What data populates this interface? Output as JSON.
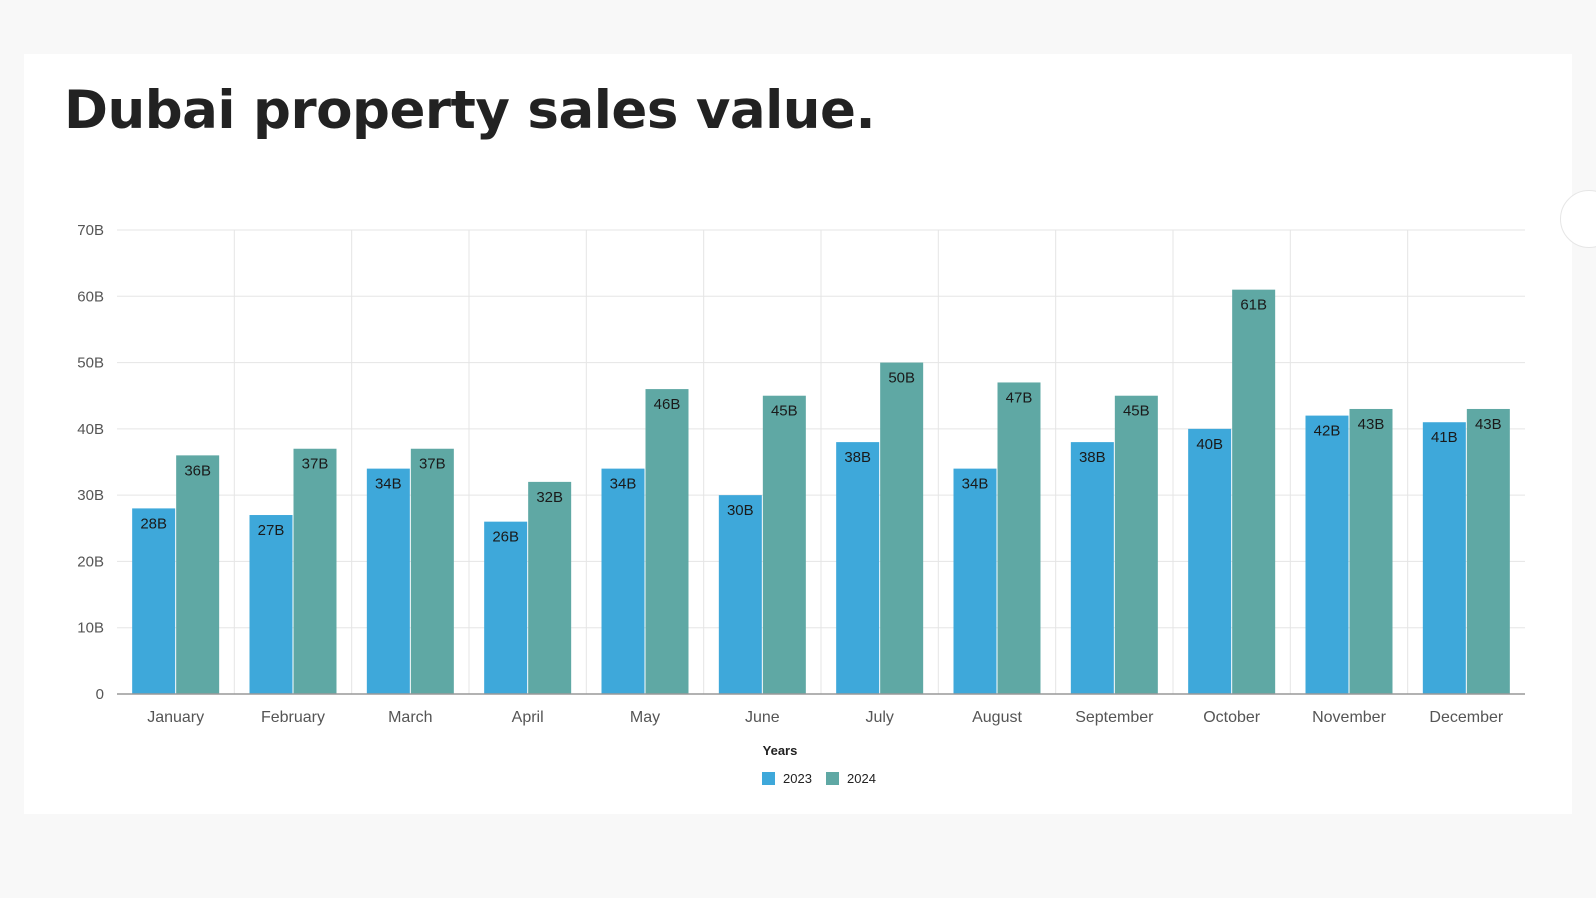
{
  "page": {
    "title": "Dubai property sales value."
  },
  "colors": {
    "series_2023": "#3ea8da",
    "series_2024": "#5fa8a4",
    "grid": "#e5e5e5",
    "axis": "#999999",
    "text": "#555555",
    "label": "#1a1a1a"
  },
  "chart_data": {
    "type": "bar",
    "title": "Dubai property sales value.",
    "categories": [
      "January",
      "February",
      "March",
      "April",
      "May",
      "June",
      "July",
      "August",
      "September",
      "October",
      "November",
      "December"
    ],
    "series": [
      {
        "name": "2023",
        "values": [
          28,
          27,
          34,
          26,
          34,
          30,
          38,
          34,
          38,
          40,
          42,
          41
        ],
        "labels": [
          "28B",
          "27B",
          "34B",
          "26B",
          "34B",
          "30B",
          "38B",
          "34B",
          "38B",
          "40B",
          "42B",
          "41B"
        ]
      },
      {
        "name": "2024",
        "values": [
          36,
          37,
          37,
          32,
          46,
          45,
          50,
          47,
          45,
          61,
          43,
          43
        ],
        "labels": [
          "36B",
          "37B",
          "37B",
          "32B",
          "46B",
          "45B",
          "50B",
          "47B",
          "45B",
          "61B",
          "43B",
          "43B"
        ]
      }
    ],
    "ylim": [
      0,
      70
    ],
    "yticks": [
      0,
      10,
      20,
      30,
      40,
      50,
      60,
      70
    ],
    "ytick_labels": [
      "0",
      "10B",
      "20B",
      "30B",
      "40B",
      "50B",
      "60B",
      "70B"
    ],
    "xlabel": "",
    "ylabel": "",
    "legend": {
      "title": "Years",
      "placement": "bottom-center"
    },
    "grid": true
  }
}
